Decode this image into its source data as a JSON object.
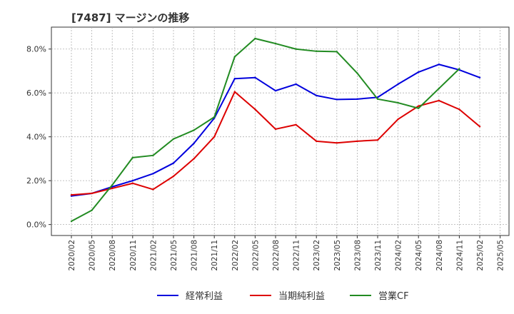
{
  "title": "[7487]  マージンの推移",
  "chart_data": {
    "type": "line",
    "title": "[7487]  マージンの推移",
    "xlabel": "",
    "ylabel": "",
    "ylim": [
      -0.5,
      9.0
    ],
    "yticks": [
      0.0,
      2.0,
      4.0,
      6.0,
      8.0
    ],
    "ytick_labels": [
      "0.0%",
      "2.0%",
      "4.0%",
      "6.0%",
      "8.0%"
    ],
    "x": [
      "2020/02",
      "2020/05",
      "2020/08",
      "2020/11",
      "2021/02",
      "2021/05",
      "2021/08",
      "2021/11",
      "2022/02",
      "2022/05",
      "2022/08",
      "2022/11",
      "2023/02",
      "2023/05",
      "2023/08",
      "2023/11",
      "2024/02",
      "2024/05",
      "2024/08",
      "2024/11",
      "2025/02",
      "2025/05"
    ],
    "grid": true,
    "legend_position": "bottom",
    "series": [
      {
        "name": "経常利益",
        "color": "#0000dd",
        "values": [
          1.3,
          1.42,
          1.72,
          2.0,
          2.32,
          2.8,
          3.7,
          4.85,
          6.65,
          6.7,
          6.1,
          6.4,
          5.88,
          5.7,
          5.72,
          5.8,
          6.4,
          6.95,
          7.3,
          7.05,
          6.7,
          null
        ]
      },
      {
        "name": "当期純利益",
        "color": "#dd0000",
        "values": [
          1.35,
          1.42,
          1.65,
          1.88,
          1.6,
          2.2,
          3.0,
          4.0,
          6.05,
          5.25,
          4.35,
          4.55,
          3.8,
          3.72,
          3.8,
          3.85,
          4.8,
          5.4,
          5.65,
          5.25,
          4.47,
          null
        ]
      },
      {
        "name": "営業CF",
        "color": "#228b22",
        "values": [
          0.15,
          0.65,
          1.8,
          3.05,
          3.15,
          3.9,
          4.3,
          4.9,
          7.65,
          8.48,
          8.25,
          8.0,
          7.9,
          7.88,
          6.9,
          5.72,
          5.55,
          5.3,
          6.2,
          7.1,
          null,
          null
        ]
      }
    ]
  }
}
